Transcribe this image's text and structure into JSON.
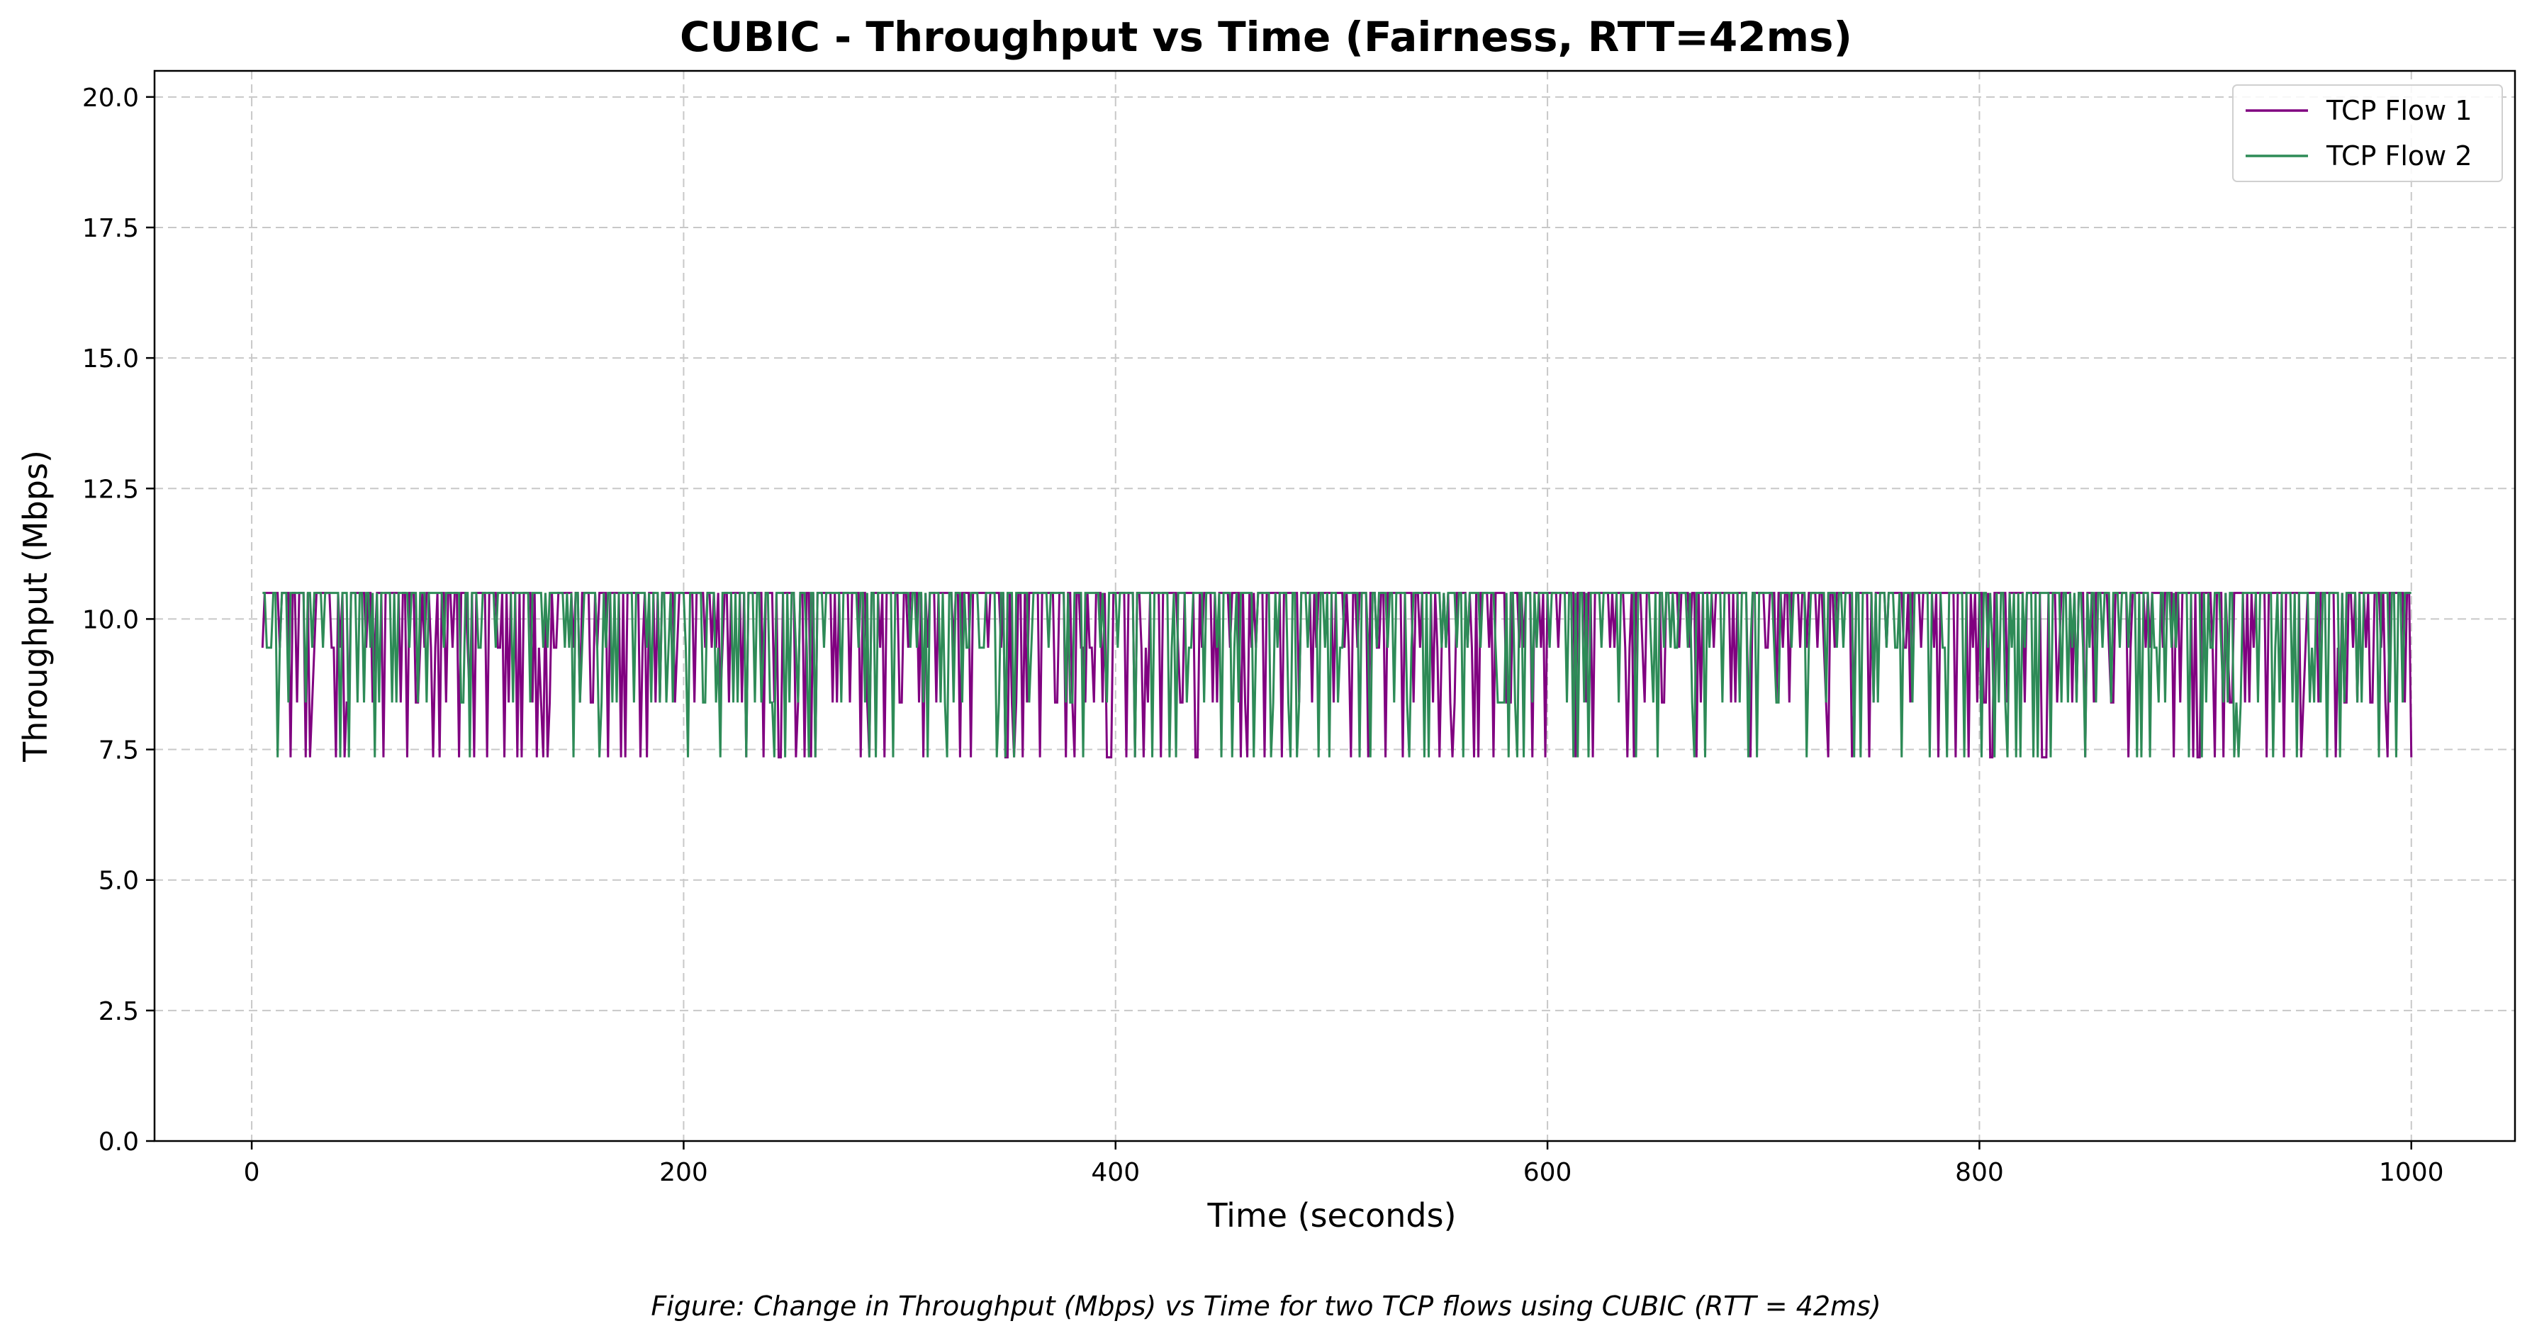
{
  "chart_data": {
    "type": "line",
    "title": "CUBIC - Throughput vs Time (Fairness, RTT=42ms)",
    "xlabel": "Time (seconds)",
    "ylabel": "Throughput (Mbps)",
    "caption": "Figure: Change in Throughput (Mbps) vs Time for two TCP flows using CUBIC (RTT = 42ms)",
    "xlim": [
      -45,
      1048
    ],
    "ylim": [
      0,
      20.5
    ],
    "xticks": [
      0,
      200,
      400,
      600,
      800,
      1000
    ],
    "xtick_labels": [
      "0",
      "200",
      "400",
      "600",
      "800",
      "1000"
    ],
    "yticks": [
      0,
      2.5,
      5,
      7.5,
      10,
      12.5,
      15,
      17.5,
      20
    ],
    "ytick_labels": [
      "0.0",
      "2.5",
      "5.0",
      "7.5",
      "10.0",
      "12.5",
      "15.0",
      "17.5",
      "20.0"
    ],
    "grid": true,
    "legend_position": "top-right",
    "series": [
      {
        "name": "TCP Flow 1",
        "color": "#800080",
        "x_start": 5,
        "x_end": 1000,
        "x_step": 1,
        "plateau": 10.5,
        "dip_levels": [
          9.45,
          8.4,
          7.35
        ],
        "dip_period": 8,
        "dip_phase": 0
      },
      {
        "name": "TCP Flow 2",
        "color": "#2e8b57",
        "x_start": 5,
        "x_end": 1000,
        "x_step": 1,
        "plateau": 10.5,
        "dip_levels": [
          9.45,
          8.4,
          7.35
        ],
        "dip_period": 8,
        "dip_phase": 4
      }
    ]
  }
}
